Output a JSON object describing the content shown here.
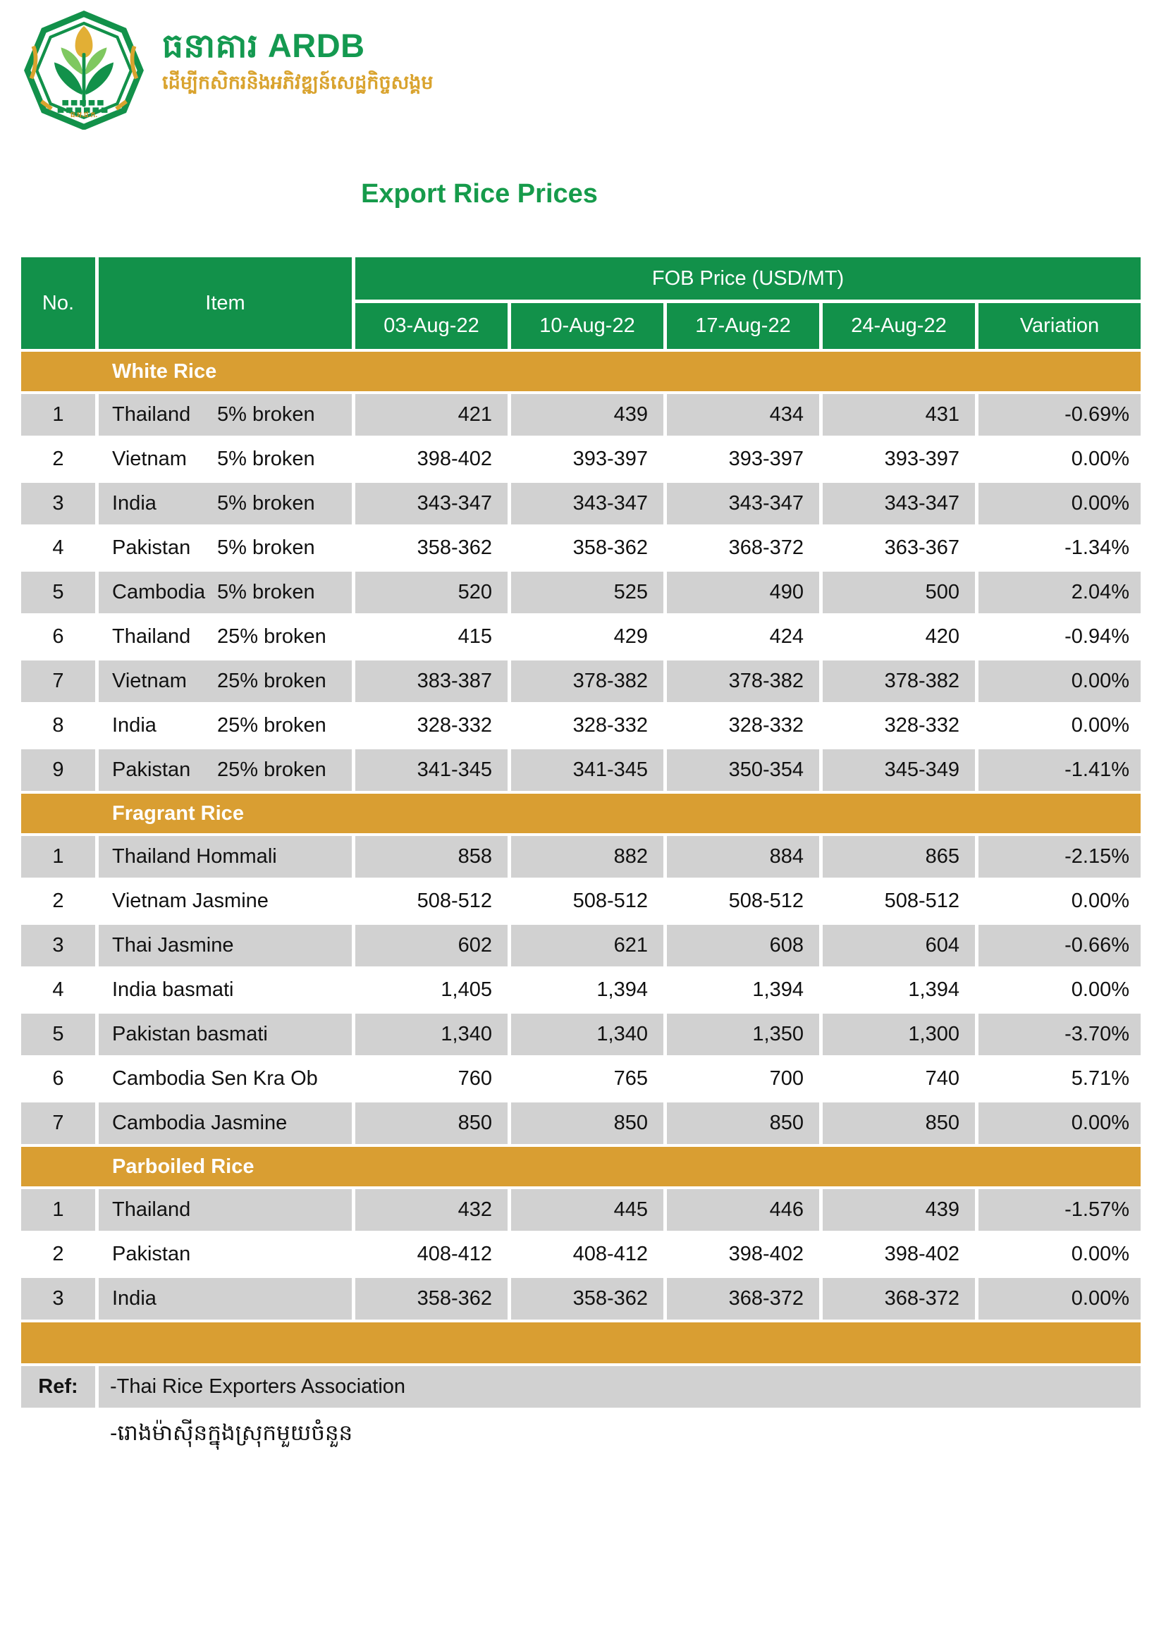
{
  "colors": {
    "green": "#12914A",
    "gold": "#D99E32",
    "row_gray": "#D1D1D1",
    "title_green": "#169B4B",
    "logo_green": "#149950",
    "gold_text": "#D9A32E"
  },
  "logo": {
    "bank_name_khmer": "ធនាគារ",
    "bank_name_latin": "ARDB",
    "tagline": "ដើម្បីកសិករនិងអភិវឌ្ឍន៍សេដ្ឋកិច្ចសង្គម",
    "emblem_abbr": "ធ.អ.ជ.ក."
  },
  "title": "Export Rice Prices",
  "table": {
    "col_no": "No.",
    "col_item": "Item",
    "fob_header": "FOB Price (USD/MT)",
    "date_cols": [
      "03-Aug-22",
      "10-Aug-22",
      "17-Aug-22",
      "24-Aug-22"
    ],
    "col_variation": "Variation",
    "sections": [
      {
        "name": "White Rice",
        "rows": [
          {
            "no": "1",
            "name": "Thailand",
            "spec": "5% broken",
            "prices": [
              "421",
              "439",
              "434",
              "431"
            ],
            "variation": "-0.69%"
          },
          {
            "no": "2",
            "name": "Vietnam",
            "spec": "5% broken",
            "prices": [
              "398-402",
              "393-397",
              "393-397",
              "393-397"
            ],
            "variation": "0.00%"
          },
          {
            "no": "3",
            "name": "India",
            "spec": "5% broken",
            "prices": [
              "343-347",
              "343-347",
              "343-347",
              "343-347"
            ],
            "variation": "0.00%"
          },
          {
            "no": "4",
            "name": "Pakistan",
            "spec": "5% broken",
            "prices": [
              "358-362",
              "358-362",
              "368-372",
              "363-367"
            ],
            "variation": "-1.34%"
          },
          {
            "no": "5",
            "name": "Cambodia",
            "spec": "5% broken",
            "prices": [
              "520",
              "525",
              "490",
              "500"
            ],
            "variation": "2.04%"
          },
          {
            "no": "6",
            "name": "Thailand",
            "spec": "25% broken",
            "prices": [
              "415",
              "429",
              "424",
              "420"
            ],
            "variation": "-0.94%"
          },
          {
            "no": "7",
            "name": "Vietnam",
            "spec": "25% broken",
            "prices": [
              "383-387",
              "378-382",
              "378-382",
              "378-382"
            ],
            "variation": "0.00%"
          },
          {
            "no": "8",
            "name": "India",
            "spec": "25% broken",
            "prices": [
              "328-332",
              "328-332",
              "328-332",
              "328-332"
            ],
            "variation": "0.00%"
          },
          {
            "no": "9",
            "name": "Pakistan",
            "spec": "25% broken",
            "prices": [
              "341-345",
              "341-345",
              "350-354",
              "345-349"
            ],
            "variation": "-1.41%"
          }
        ]
      },
      {
        "name": "Fragrant Rice",
        "rows": [
          {
            "no": "1",
            "name": "Thailand Hommali",
            "prices": [
              "858",
              "882",
              "884",
              "865"
            ],
            "variation": "-2.15%"
          },
          {
            "no": "2",
            "name": "Vietnam Jasmine",
            "prices": [
              "508-512",
              "508-512",
              "508-512",
              "508-512"
            ],
            "variation": "0.00%"
          },
          {
            "no": "3",
            "name": "Thai Jasmine",
            "prices": [
              "602",
              "621",
              "608",
              "604"
            ],
            "variation": "-0.66%"
          },
          {
            "no": "4",
            "name": "India basmati",
            "prices": [
              "1,405",
              "1,394",
              "1,394",
              "1,394"
            ],
            "variation": "0.00%"
          },
          {
            "no": "5",
            "name": "Pakistan basmati",
            "prices": [
              "1,340",
              "1,340",
              "1,350",
              "1,300"
            ],
            "variation": "-3.70%"
          },
          {
            "no": "6",
            "name": "Cambodia Sen Kra Ob",
            "prices": [
              "760",
              "765",
              "700",
              "740"
            ],
            "variation": "5.71%"
          },
          {
            "no": "7",
            "name": "Cambodia Jasmine",
            "prices": [
              "850",
              "850",
              "850",
              "850"
            ],
            "variation": "0.00%"
          }
        ]
      },
      {
        "name": "Parboiled Rice",
        "rows": [
          {
            "no": "1",
            "name": "Thailand",
            "prices": [
              "432",
              "445",
              "446",
              "439"
            ],
            "variation": "-1.57%"
          },
          {
            "no": "2",
            "name": "Pakistan",
            "prices": [
              "408-412",
              "408-412",
              "398-402",
              "398-402"
            ],
            "variation": "0.00%"
          },
          {
            "no": "3",
            "name": "India",
            "prices": [
              "358-362",
              "358-362",
              "368-372",
              "368-372"
            ],
            "variation": "0.00%"
          }
        ]
      }
    ],
    "ref_label": "Ref:",
    "ref_source": "-Thai Rice Exporters Association",
    "ref_note_khmer": "-រោងម៉ាស៊ីនក្នុងស្រុកមួយចំនួន"
  }
}
